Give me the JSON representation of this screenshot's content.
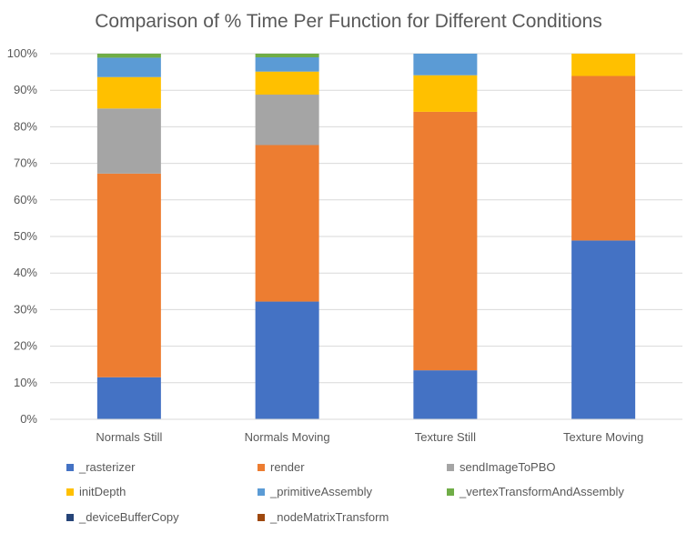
{
  "chart_data": {
    "type": "bar",
    "stacked": "percent",
    "title": "Comparison of % Time Per Function for Different Conditions",
    "categories": [
      "Normals Still",
      "Normals Moving",
      "Texture Still",
      "Texture Moving"
    ],
    "ylim": [
      0,
      100
    ],
    "ytick_labels": [
      "0%",
      "10%",
      "20%",
      "30%",
      "40%",
      "50%",
      "60%",
      "70%",
      "80%",
      "90%",
      "100%"
    ],
    "grid": true,
    "legend_position": "bottom",
    "series": [
      {
        "name": "_rasterizer",
        "color": "#4472C4",
        "values": [
          11.5,
          32.2,
          13.4,
          48.9
        ]
      },
      {
        "name": "render",
        "color": "#ED7D31",
        "values": [
          55.7,
          42.8,
          70.7,
          45.0
        ]
      },
      {
        "name": "sendImageToPBO",
        "color": "#A5A5A5",
        "values": [
          17.8,
          13.8,
          0,
          0
        ]
      },
      {
        "name": "initDepth",
        "color": "#FFC000",
        "values": [
          8.6,
          6.3,
          10.0,
          6.1
        ]
      },
      {
        "name": "_primitiveAssembly",
        "color": "#5B9BD5",
        "values": [
          5.3,
          3.9,
          5.9,
          0
        ]
      },
      {
        "name": "_vertexTransformAndAssembly",
        "color": "#70AD47",
        "values": [
          1.1,
          1.0,
          0,
          0
        ]
      },
      {
        "name": "_deviceBufferCopy",
        "color": "#264478",
        "values": [
          0,
          0,
          0,
          0
        ]
      },
      {
        "name": "_nodeMatrixTransform",
        "color": "#9E480E",
        "values": [
          0,
          0,
          0,
          0
        ]
      }
    ]
  }
}
